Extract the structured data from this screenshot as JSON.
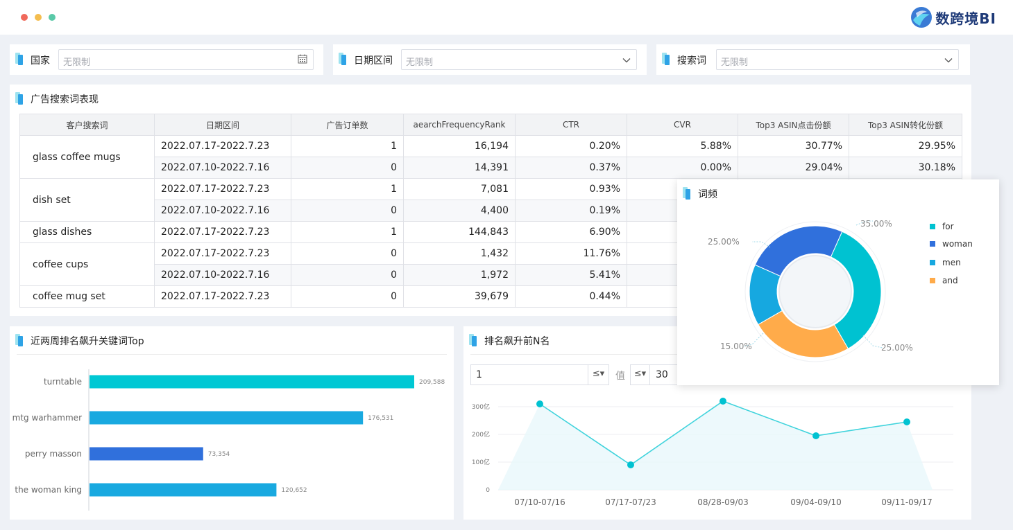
{
  "window": {
    "dot_colors": [
      "#f0695b",
      "#f4bd4f",
      "#5ac9a8"
    ]
  },
  "brand": {
    "name": "数跨境BI"
  },
  "filters": [
    {
      "label": "国家",
      "placeholder": "无限制",
      "icon": "calendar-icon"
    },
    {
      "label": "日期区间",
      "placeholder": "无限制",
      "icon": "chevron-down-icon"
    },
    {
      "label": "搜索词",
      "placeholder": "无限制",
      "icon": "chevron-down-icon"
    }
  ],
  "ad_table": {
    "title": "广告搜索词表现",
    "columns": [
      "客户搜索词",
      "日期区间",
      "广告订单数",
      "aearchFrequencyRank",
      "CTR",
      "CVR",
      "Top3 ASIN点击份额",
      "Top3 ASIN转化份额"
    ],
    "groups": [
      {
        "keyword": "glass coffee mugs",
        "rows": [
          [
            "2022.07.17-2022.7.23",
            "1",
            "16,194",
            "0.20%",
            "5.88%",
            "30.77%",
            "29.95%"
          ],
          [
            "2022.07.10-2022.7.16",
            "0",
            "14,391",
            "0.37%",
            "0.00%",
            "29.04%",
            "30.18%"
          ]
        ]
      },
      {
        "keyword": "dish set",
        "rows": [
          [
            "2022.07.17-2022.7.23",
            "1",
            "7,081",
            "0.93%",
            "",
            "",
            ""
          ],
          [
            "2022.07.10-2022.7.16",
            "0",
            "4,400",
            "0.19%",
            "",
            "",
            ""
          ]
        ]
      },
      {
        "keyword": "glass dishes",
        "rows": [
          [
            "2022.07.17-2022.7.23",
            "1",
            "144,843",
            "6.90%",
            "",
            "",
            ""
          ]
        ]
      },
      {
        "keyword": "coffee cups",
        "rows": [
          [
            "2022.07.17-2022.7.23",
            "0",
            "1,432",
            "11.76%",
            "",
            "",
            ""
          ],
          [
            "2022.07.10-2022.7.16",
            "0",
            "1,972",
            "5.41%",
            "",
            "",
            ""
          ]
        ]
      },
      {
        "keyword": "coffee mug set",
        "rows": [
          [
            "2022.07.17-2022.7.23",
            "0",
            "39,679",
            "0.44%",
            "",
            "",
            ""
          ]
        ]
      }
    ]
  },
  "word_freq": {
    "title": "词频",
    "labels": [
      "35.00%",
      "25.00%",
      "25.00%",
      "15.00%"
    ]
  },
  "rank_top": {
    "title": "近两周排名飙升关键词Top"
  },
  "rank_n": {
    "title": "排名飙升前N名",
    "input_value": "1",
    "value_label": "值",
    "second_value": "30"
  },
  "chart_data": [
    {
      "type": "pie",
      "title": "词频",
      "slices": [
        {
          "name": "for",
          "value": 35,
          "color": "#00c2d1"
        },
        {
          "name": "and",
          "value": 25,
          "color": "#ffab4a"
        },
        {
          "name": "men",
          "value": 15,
          "color": "#16a8e0"
        },
        {
          "name": "woman",
          "value": 25,
          "color": "#3070dc"
        }
      ]
    },
    {
      "type": "bar",
      "orientation": "horizontal",
      "title": "近两周排名飙升关键词Top",
      "categories": [
        "turntable",
        "mtg warhammer",
        "perry masson",
        "the woman king"
      ],
      "values": [
        209588,
        176531,
        73354,
        120652
      ],
      "value_labels": [
        "209,588",
        "176,531",
        "73,354",
        "120,652"
      ],
      "colors": [
        "#00c8d4",
        "#19a9e0",
        "#3070dc",
        "#19a9e0"
      ],
      "xlim": [
        0,
        209588
      ]
    },
    {
      "type": "line",
      "title": "排名飙升前N名",
      "categories": [
        "07/10-07/16",
        "07/17-07/23",
        "08/28-09/03",
        "09/04-09/10",
        "09/11-09/17"
      ],
      "values": [
        310,
        90,
        320,
        195,
        245
      ],
      "unit": "亿",
      "yticks": [
        "0",
        "100亿",
        "200亿",
        "300亿"
      ],
      "ylim": [
        0,
        300
      ],
      "color": "#3fd3dc"
    }
  ]
}
